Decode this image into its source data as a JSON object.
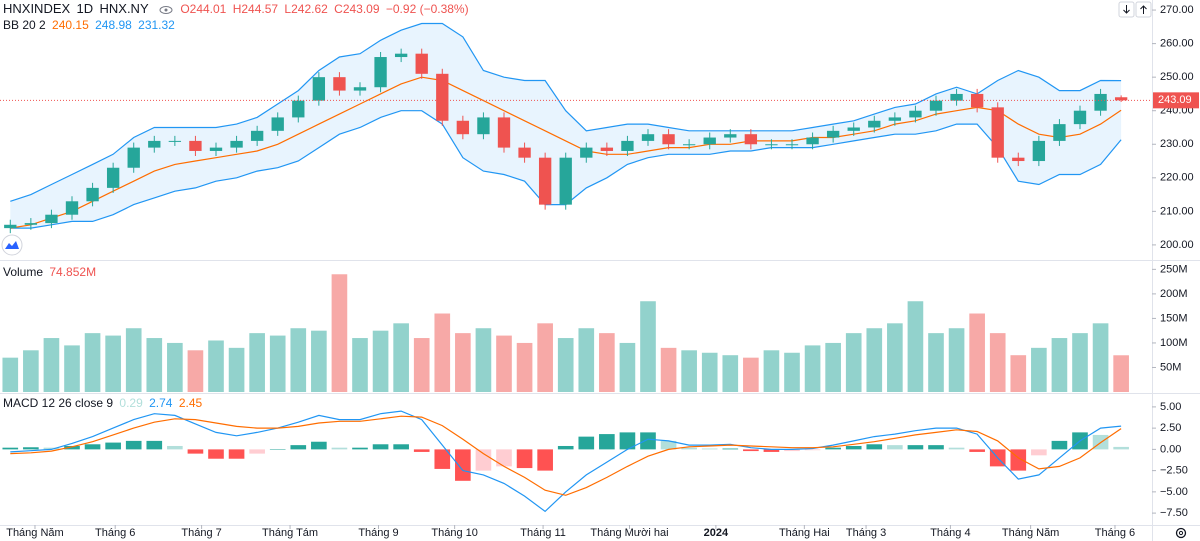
{
  "chart_data": [
    {
      "type": "candlestick",
      "title": "HNXINDEX",
      "interval": "1D",
      "exchange": "HNX.NY",
      "legend_labels": {
        "open": "O",
        "high": "H",
        "low": "L",
        "close": "C",
        "change": "−0.92 (−0.38%)"
      },
      "up_color": "#26a69a",
      "down_color": "#ef5350",
      "xlim": [
        -0.5,
        55.5
      ],
      "xticks": [
        {
          "value": 1.2,
          "label": "Tháng Năm"
        },
        {
          "value": 5.1,
          "label": "Tháng 6"
        },
        {
          "value": 9.3,
          "label": "Tháng 7"
        },
        {
          "value": 13.6,
          "label": "Tháng Tám"
        },
        {
          "value": 17.9,
          "label": "Tháng 9"
        },
        {
          "value": 21.6,
          "label": "Tháng 10"
        },
        {
          "value": 25.9,
          "label": "Tháng 11"
        },
        {
          "value": 30.1,
          "label": "Tháng Mười hai"
        },
        {
          "value": 34.3,
          "label": "2024"
        },
        {
          "value": 38.6,
          "label": "Tháng Hai"
        },
        {
          "value": 41.6,
          "label": "Tháng 3"
        },
        {
          "value": 45.7,
          "label": "Tháng 4"
        },
        {
          "value": 49.6,
          "label": "Tháng Năm"
        },
        {
          "value": 53.7,
          "label": "Tháng 6"
        }
      ],
      "ylim": [
        195.5,
        273
      ],
      "yticks": [
        {
          "value": 200,
          "label": "200.00"
        },
        {
          "value": 210,
          "label": "210.00"
        },
        {
          "value": 220,
          "label": "220.00"
        },
        {
          "value": 230,
          "label": "230.00"
        },
        {
          "value": 240,
          "label": "240.00"
        },
        {
          "value": 250,
          "label": "250.00"
        },
        {
          "value": 260,
          "label": "260.00"
        },
        {
          "value": 270,
          "label": "270.00"
        }
      ],
      "ohlc": {
        "open": [
          205,
          206,
          206.5,
          209,
          213,
          217,
          223,
          229,
          231,
          231,
          228,
          229,
          231,
          234,
          238,
          243,
          250,
          246,
          247,
          256,
          257,
          251,
          237,
          233,
          238,
          229,
          226,
          212,
          226,
          229,
          228,
          231,
          233,
          230,
          230,
          232,
          233,
          230,
          230,
          230,
          232,
          234,
          235,
          237,
          238,
          240,
          243,
          245,
          241,
          226,
          225,
          231,
          236,
          240,
          244.01
        ],
        "high": [
          207.5,
          208,
          210.5,
          214.5,
          218.5,
          224.5,
          230.5,
          232.5,
          232.5,
          232.5,
          230.5,
          232.5,
          235.5,
          239.5,
          244.5,
          251.5,
          251.5,
          248.5,
          257.5,
          258.5,
          258.5,
          252.5,
          238.5,
          239.5,
          239.5,
          230.5,
          227.5,
          227.5,
          230.5,
          230.5,
          232.5,
          234.5,
          234.5,
          231.5,
          233.5,
          234.5,
          234.5,
          231.5,
          231.5,
          233.5,
          235.5,
          236.5,
          238.5,
          239.5,
          241.5,
          244.5,
          246.5,
          246.5,
          242.5,
          227.5,
          232.5,
          237.5,
          241.5,
          246.5,
          244.57
        ],
        "low": [
          203.5,
          204.5,
          205,
          207.5,
          211.5,
          215.5,
          221.5,
          227.5,
          229.5,
          226.5,
          226.5,
          227.5,
          229.5,
          232.5,
          236.5,
          241.5,
          244.5,
          244.5,
          245.5,
          254.5,
          249.5,
          235.5,
          231.5,
          231.5,
          227.5,
          224.5,
          210.5,
          210.5,
          224.5,
          226.5,
          226.5,
          229.5,
          228.5,
          228.5,
          228.5,
          230.5,
          228.5,
          228.5,
          228.5,
          228.5,
          230.5,
          232.5,
          233.5,
          235.5,
          236.5,
          238.5,
          241.5,
          239.5,
          224.5,
          223.5,
          223.5,
          229.5,
          234.5,
          238.5,
          242.62
        ],
        "close": [
          206,
          206.5,
          209,
          213,
          217,
          223,
          229,
          231,
          231,
          228,
          229,
          231,
          234,
          238,
          243,
          250,
          246,
          247,
          256,
          257,
          251,
          237,
          233,
          238,
          229,
          226,
          212,
          226,
          229,
          228,
          231,
          233,
          230,
          230,
          232,
          233,
          230,
          230,
          230,
          232,
          234,
          235,
          237,
          238,
          240,
          243,
          245,
          241,
          226,
          225,
          231,
          236,
          240,
          245,
          243.09
        ]
      },
      "bollinger": {
        "label": "BB 20 2",
        "middle_color": "#ff6d00",
        "band_color": "#2196f3",
        "fill": "rgba(33,150,243,0.1)",
        "middle": [
          205,
          206,
          208,
          210,
          213,
          216,
          219,
          222,
          224,
          225,
          226,
          227,
          228,
          230,
          233,
          236,
          239,
          242,
          245,
          248,
          250,
          249,
          246,
          243,
          240,
          237,
          234,
          231,
          228,
          227,
          227,
          228,
          229,
          229,
          230,
          230,
          231,
          231,
          231,
          232,
          232,
          233,
          234,
          236,
          237,
          239,
          240,
          241,
          240,
          236,
          233,
          232,
          233,
          236,
          240.15
        ],
        "upper": [
          213,
          215,
          218,
          221,
          224,
          227,
          232,
          235,
          235,
          235,
          235,
          236,
          238,
          242,
          246,
          252,
          256,
          257,
          261,
          264,
          266,
          266,
          262,
          252,
          250,
          249,
          249,
          240,
          234,
          235,
          236,
          236,
          235,
          234,
          234,
          234,
          234,
          234,
          234,
          235,
          236,
          237,
          239,
          241,
          242,
          245,
          247,
          245,
          249,
          252,
          250,
          246,
          246,
          249,
          248.98
        ],
        "lower": [
          205,
          205,
          206,
          207,
          207,
          209,
          212,
          214,
          216,
          217,
          219,
          220,
          222,
          223,
          225,
          229,
          233,
          235,
          238,
          240,
          240,
          236,
          226,
          222,
          221,
          219,
          212,
          212,
          217,
          220,
          224,
          226,
          227,
          227,
          227,
          228,
          228,
          229,
          229,
          229,
          230,
          231,
          232,
          233,
          233,
          234,
          236,
          236,
          229,
          219,
          218,
          221,
          221,
          224,
          231.32
        ]
      }
    },
    {
      "type": "bar",
      "title": "Volume",
      "up_color": "rgba(38,166,154,0.5)",
      "down_color": "rgba(239,83,80,0.5)",
      "ylim": [
        0,
        265
      ],
      "yticks": [
        {
          "value": 50,
          "label": "50M"
        },
        {
          "value": 100,
          "label": "100M"
        },
        {
          "value": 150,
          "label": "150M"
        },
        {
          "value": 200,
          "label": "200M"
        },
        {
          "value": 250,
          "label": "250M"
        }
      ],
      "values": [
        70,
        85,
        110,
        95,
        120,
        115,
        130,
        110,
        100,
        85,
        105,
        90,
        120,
        115,
        130,
        125,
        240,
        110,
        125,
        140,
        110,
        160,
        120,
        130,
        115,
        100,
        140,
        110,
        130,
        120,
        100,
        185,
        90,
        85,
        80,
        75,
        70,
        85,
        80,
        95,
        100,
        120,
        130,
        140,
        185,
        120,
        130,
        160,
        120,
        75,
        90,
        110,
        120,
        140,
        74.852
      ],
      "value_labels": [
        null,
        null,
        null,
        null,
        null,
        null,
        null,
        null,
        null,
        null,
        null,
        null,
        null,
        null,
        null,
        null,
        null,
        null,
        null,
        null,
        null,
        null,
        null,
        null,
        null,
        null,
        null,
        null,
        null,
        null,
        null,
        null,
        null,
        null,
        null,
        null,
        null,
        null,
        null,
        null,
        null,
        null,
        null,
        null,
        null,
        null,
        null,
        null,
        null,
        null,
        null,
        null,
        null,
        null,
        "74.852M"
      ]
    },
    {
      "type": "macd",
      "title": "MACD 12 26 close 9",
      "ylim": [
        -8.9,
        6.4
      ],
      "yticks": [
        {
          "value": 5,
          "label": "5.00"
        },
        {
          "value": 2.5,
          "label": "2.50"
        },
        {
          "value": 0,
          "label": "0.00"
        },
        {
          "value": -2.5,
          "label": "−2.50"
        },
        {
          "value": -5,
          "label": "−5.00"
        },
        {
          "value": -7.5,
          "label": "−7.50"
        }
      ],
      "histogram": {
        "colors": [
          "#26a69a",
          "#b2dfdb",
          "#ff5252",
          "#ffcdd2"
        ],
        "values": [
          0.2,
          0.25,
          0.2,
          0.4,
          0.6,
          0.8,
          1.0,
          1.0,
          0.4,
          -0.5,
          -1.1,
          -1.1,
          -0.5,
          0,
          0.5,
          0.9,
          0.2,
          0.2,
          0.6,
          0.6,
          -0.3,
          -2.3,
          -3.7,
          -2.5,
          -2,
          -2.2,
          -2.5,
          0.4,
          1.5,
          1.8,
          2,
          2,
          1,
          0.2,
          0.1,
          0.1,
          -0.2,
          -0.3,
          -0.2,
          -0.1,
          0.2,
          0.4,
          0.6,
          0.5,
          0.5,
          0.5,
          0.2,
          -0.3,
          -2,
          -2.5,
          -0.7,
          1,
          2,
          1.7,
          0.29
        ]
      },
      "macd": {
        "color": "#2196f3",
        "values": [
          -0.3,
          -0.15,
          0,
          0.7,
          1.5,
          2.5,
          3.5,
          4.2,
          4.0,
          3,
          2,
          1.6,
          2,
          2.5,
          3.2,
          4,
          3.5,
          3.5,
          4.2,
          4.5,
          3.5,
          0.5,
          -2.5,
          -3,
          -4,
          -5.5,
          -7.3,
          -5,
          -3,
          -1.5,
          0,
          1.2,
          1,
          0.5,
          0.5,
          0.6,
          0.2,
          0,
          0,
          0.1,
          0.5,
          1,
          1.5,
          1.8,
          2.2,
          2.5,
          2.5,
          1.8,
          -1,
          -3.5,
          -3,
          -1,
          1,
          2.5,
          2.74
        ]
      },
      "signal": {
        "color": "#ff6d00",
        "values": [
          -0.5,
          -0.4,
          -0.2,
          0.3,
          0.9,
          1.7,
          2.5,
          3.2,
          3.6,
          3.5,
          3.1,
          2.7,
          2.5,
          2.5,
          2.7,
          3.1,
          3.3,
          3.3,
          3.6,
          3.9,
          3.8,
          2.8,
          1.2,
          -0.5,
          -2,
          -3.3,
          -4.8,
          -5.4,
          -4.5,
          -3.3,
          -2,
          -0.8,
          0,
          0.3,
          0.4,
          0.5,
          0.4,
          0.3,
          0.2,
          0.2,
          0.3,
          0.6,
          0.9,
          1.3,
          1.7,
          2,
          2.3,
          2.1,
          1,
          -1,
          -2.3,
          -2,
          -1,
          0.8,
          2.45
        ]
      }
    }
  ]
}
